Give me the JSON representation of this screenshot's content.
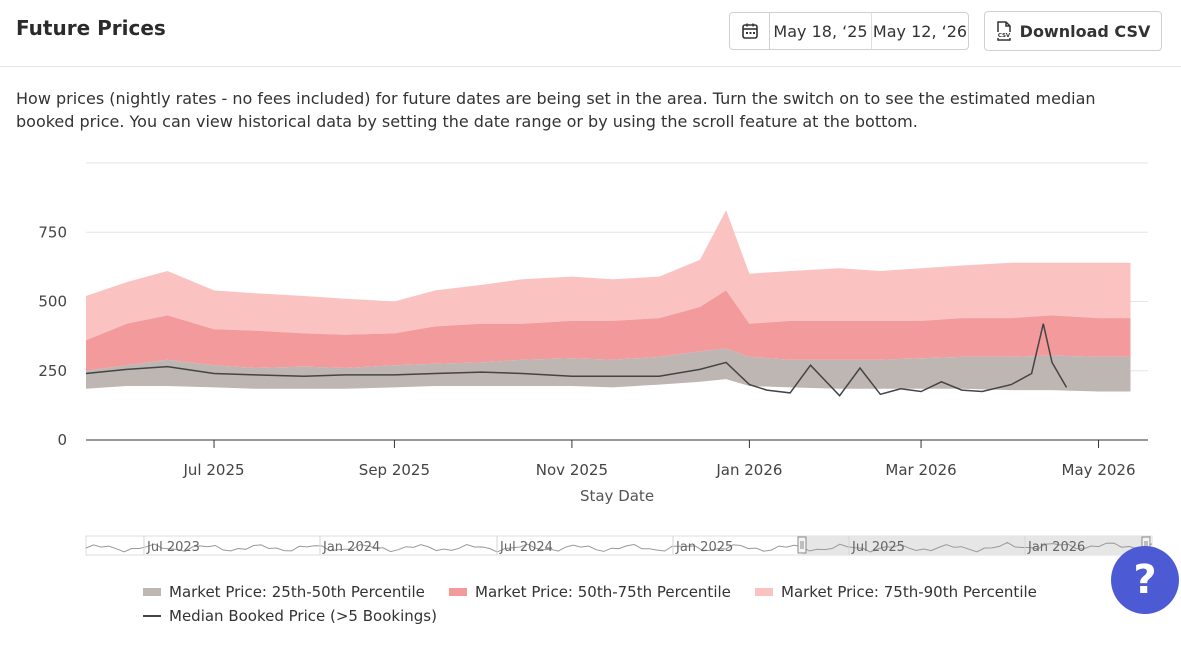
{
  "header": {
    "title": "Future Prices",
    "date_start": "May 18, ‘25",
    "date_end": "May 12, ‘26",
    "download_label": "Download CSV"
  },
  "description": "How prices (nightly rates - no fees included) for future dates are being set in the area. Turn the switch on to see the estimated median booked price. You can view historical data by setting the date range or by using the scroll feature at the bottom.",
  "help_label": "?",
  "colors": {
    "p25_50": "#bdb6b3",
    "p50_75": "#f39a9c",
    "p75_90": "#fbc2c2",
    "median": "#444444",
    "accent": "#4c5bd4"
  },
  "chart_data": {
    "type": "area",
    "xlabel": "Stay Date",
    "ylabel": "",
    "ylim": [
      0,
      1000
    ],
    "yticks": [
      0,
      250,
      500,
      750
    ],
    "xticks": [
      "Jul 2025",
      "Sep 2025",
      "Nov 2025",
      "Jan 2026",
      "Mar 2026",
      "May 2026"
    ],
    "grid": true,
    "legend_position": "bottom",
    "x": [
      "2025-05-18",
      "2025-06-01",
      "2025-06-15",
      "2025-07-01",
      "2025-07-15",
      "2025-08-01",
      "2025-08-15",
      "2025-09-01",
      "2025-09-15",
      "2025-10-01",
      "2025-10-15",
      "2025-11-01",
      "2025-11-15",
      "2025-12-01",
      "2025-12-15",
      "2025-12-24",
      "2026-01-01",
      "2026-01-15",
      "2026-02-01",
      "2026-02-15",
      "2026-03-01",
      "2026-03-15",
      "2026-04-01",
      "2026-04-15",
      "2026-05-01",
      "2026-05-12"
    ],
    "series": [
      {
        "name": "Market Price: 25th-50th Percentile",
        "lower": [
          185,
          195,
          195,
          190,
          185,
          185,
          185,
          190,
          195,
          195,
          195,
          195,
          190,
          200,
          210,
          220,
          195,
          190,
          185,
          185,
          185,
          185,
          180,
          180,
          175,
          175
        ],
        "upper": [
          250,
          270,
          290,
          270,
          260,
          265,
          260,
          270,
          275,
          280,
          290,
          295,
          290,
          300,
          320,
          330,
          300,
          290,
          290,
          290,
          295,
          300,
          300,
          305,
          300,
          300
        ]
      },
      {
        "name": "Market Price: 50th-75th Percentile",
        "lower": [
          250,
          270,
          290,
          270,
          260,
          265,
          260,
          270,
          275,
          280,
          290,
          295,
          290,
          300,
          320,
          330,
          300,
          290,
          290,
          290,
          295,
          300,
          300,
          305,
          300,
          300
        ],
        "upper": [
          360,
          420,
          450,
          400,
          395,
          385,
          380,
          385,
          410,
          420,
          420,
          430,
          430,
          440,
          480,
          540,
          420,
          430,
          430,
          430,
          430,
          440,
          440,
          450,
          440,
          440
        ]
      },
      {
        "name": "Market Price: 75th-90th Percentile",
        "lower": [
          360,
          420,
          450,
          400,
          395,
          385,
          380,
          385,
          410,
          420,
          420,
          430,
          430,
          440,
          480,
          540,
          420,
          430,
          430,
          430,
          430,
          440,
          440,
          450,
          440,
          440
        ],
        "upper": [
          520,
          570,
          610,
          540,
          530,
          520,
          510,
          500,
          540,
          560,
          580,
          590,
          580,
          590,
          650,
          830,
          600,
          610,
          620,
          610,
          620,
          630,
          640,
          640,
          640,
          640
        ]
      },
      {
        "name": "Median Booked Price (>5 Bookings)",
        "x": [
          "2025-05-18",
          "2025-06-01",
          "2025-06-15",
          "2025-07-01",
          "2025-07-15",
          "2025-08-01",
          "2025-08-15",
          "2025-09-01",
          "2025-09-15",
          "2025-10-01",
          "2025-10-15",
          "2025-11-01",
          "2025-11-15",
          "2025-12-01",
          "2025-12-15",
          "2025-12-24",
          "2026-01-01",
          "2026-01-07",
          "2026-01-15",
          "2026-01-22",
          "2026-02-01",
          "2026-02-08",
          "2026-02-15",
          "2026-02-22",
          "2026-03-01",
          "2026-03-08",
          "2026-03-15",
          "2026-03-22",
          "2026-04-01",
          "2026-04-08",
          "2026-04-12",
          "2026-04-15",
          "2026-04-20"
        ],
        "values": [
          240,
          255,
          265,
          240,
          235,
          230,
          235,
          235,
          240,
          245,
          240,
          230,
          230,
          230,
          255,
          280,
          200,
          180,
          170,
          270,
          160,
          260,
          165,
          185,
          175,
          210,
          180,
          175,
          200,
          240,
          420,
          280,
          190
        ]
      }
    ]
  },
  "navigator": {
    "labels": [
      "Jul 2023",
      "Jan 2024",
      "Jul 2024",
      "Jan 2025",
      "Jul 2025",
      "Jan 2026"
    ]
  }
}
